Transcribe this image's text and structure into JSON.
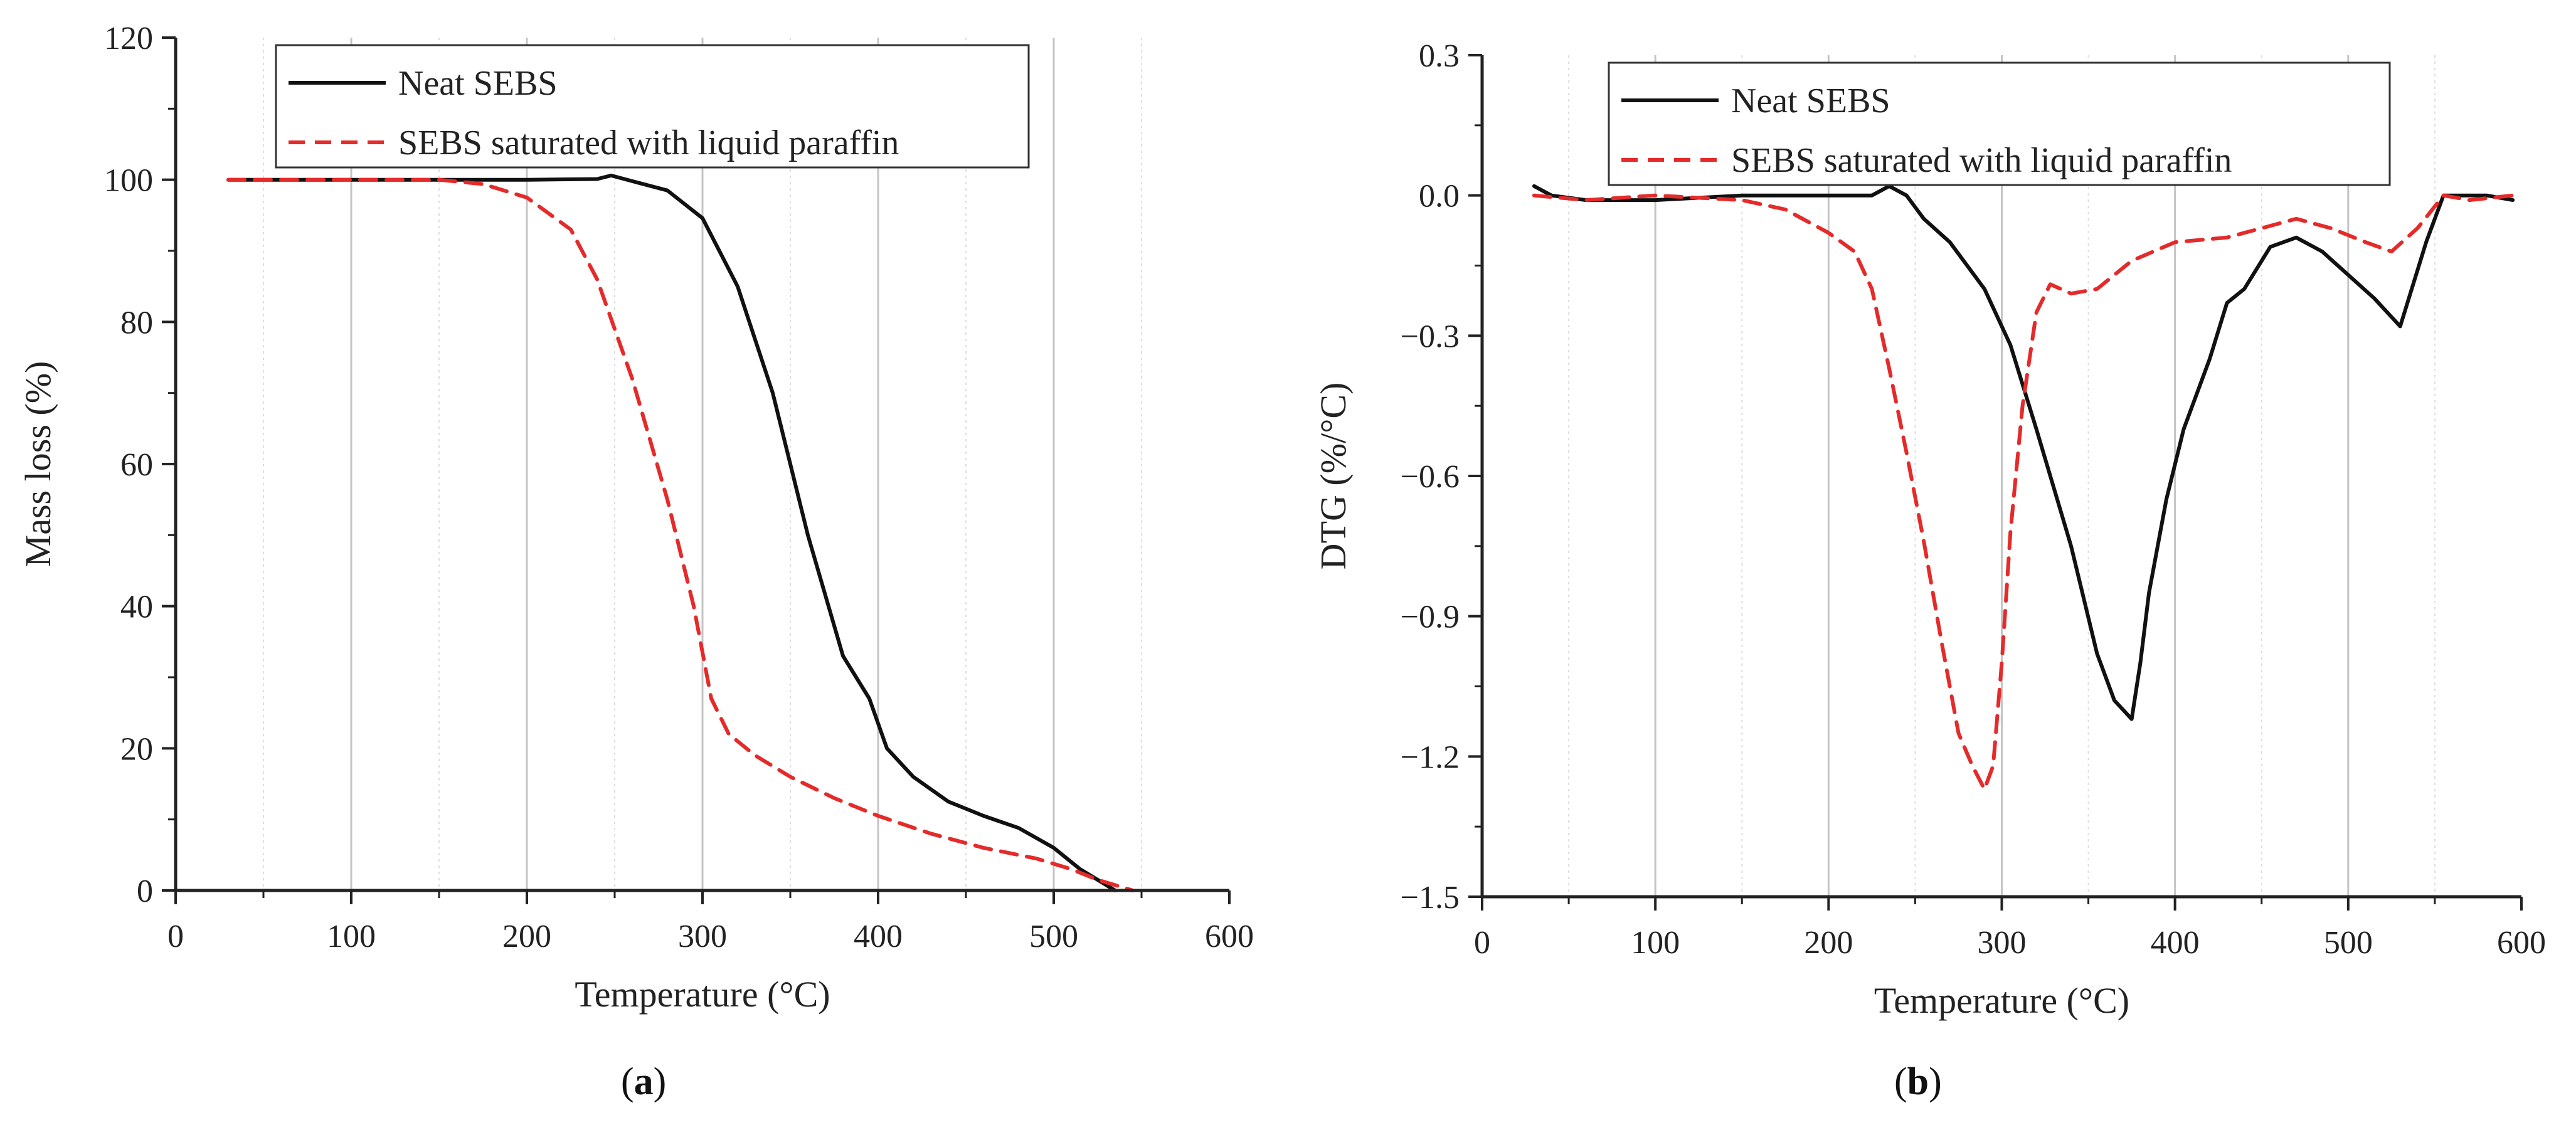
{
  "panels": {
    "a_label_open": "(",
    "a_label_letter": "a",
    "a_label_close": ")",
    "b_label_open": "(",
    "b_label_letter": "b",
    "b_label_close": ")"
  },
  "chart_data": [
    {
      "type": "line",
      "title": "",
      "xlabel": "Temperature (°C)",
      "ylabel": "Mass loss (%)",
      "xlim": [
        0,
        600
      ],
      "ylim": [
        0,
        120
      ],
      "xticks": [
        0,
        100,
        200,
        300,
        400,
        500,
        600
      ],
      "xtick_labels": [
        "0",
        "100",
        "200",
        "300",
        "400",
        "500",
        "600"
      ],
      "yticks": [
        0,
        20,
        40,
        60,
        80,
        100,
        120
      ],
      "ytick_labels": [
        "0",
        "20",
        "40",
        "60",
        "80",
        "100",
        "120"
      ],
      "grid": "vertical",
      "legend": "top-center",
      "series": [
        {
          "name": "Neat SEBS",
          "color": "#111111",
          "dash": "solid",
          "x": [
            30,
            100,
            200,
            240,
            248,
            260,
            280,
            300,
            320,
            340,
            360,
            380,
            395,
            405,
            420,
            440,
            460,
            480,
            500,
            515,
            525,
            535
          ],
          "y": [
            100,
            100,
            100,
            100.1,
            100.6,
            99.8,
            98.5,
            94.6,
            85,
            70,
            50,
            33,
            27,
            20,
            16,
            12.5,
            10.5,
            8.8,
            6,
            3,
            1.5,
            0
          ]
        },
        {
          "name": "SEBS saturated with liquid paraffin",
          "color": "#e52a2a",
          "dash": "dashed",
          "x": [
            30,
            100,
            150,
            175,
            200,
            225,
            240,
            260,
            280,
            295,
            305,
            315,
            330,
            350,
            375,
            400,
            430,
            460,
            490,
            510,
            525,
            545
          ],
          "y": [
            100,
            100,
            100,
            99.4,
            97.5,
            93,
            86,
            72,
            55,
            40,
            27,
            22,
            19,
            16,
            13,
            10.5,
            8,
            6,
            4.5,
            3,
            1.5,
            0
          ]
        }
      ]
    },
    {
      "type": "line",
      "title": "",
      "xlabel": "Temperature (°C)",
      "ylabel": "DTG (%/°C)",
      "xlim": [
        0,
        600
      ],
      "ylim": [
        -1.5,
        0.3
      ],
      "xticks": [
        0,
        100,
        200,
        300,
        400,
        500,
        600
      ],
      "xtick_labels": [
        "0",
        "100",
        "200",
        "300",
        "400",
        "500",
        "600"
      ],
      "yticks": [
        -1.5,
        -1.2,
        -0.9,
        -0.6,
        -0.3,
        0.0,
        0.3
      ],
      "ytick_labels": [
        "−1.5",
        "−1.2",
        "−0.9",
        "−0.6",
        "−0.3",
        "0.0",
        "0.3"
      ],
      "grid": "vertical",
      "legend": "top-right",
      "series": [
        {
          "name": "Neat SEBS",
          "color": "#111111",
          "dash": "solid",
          "x": [
            30,
            40,
            60,
            100,
            150,
            200,
            225,
            235,
            245,
            255,
            270,
            290,
            305,
            320,
            340,
            355,
            365,
            375,
            380,
            385,
            395,
            405,
            420,
            430,
            440,
            455,
            470,
            485,
            500,
            515,
            530,
            545,
            555,
            565,
            580,
            595
          ],
          "y": [
            0.02,
            0.0,
            -0.01,
            -0.01,
            0.0,
            0.0,
            0.0,
            0.02,
            0.0,
            -0.05,
            -0.1,
            -0.2,
            -0.32,
            -0.5,
            -0.75,
            -0.98,
            -1.08,
            -1.12,
            -1.0,
            -0.85,
            -0.65,
            -0.5,
            -0.35,
            -0.23,
            -0.2,
            -0.11,
            -0.09,
            -0.12,
            -0.17,
            -0.22,
            -0.28,
            -0.1,
            0.0,
            0.0,
            0.0,
            -0.01
          ]
        },
        {
          "name": "SEBS saturated with liquid paraffin",
          "color": "#e52a2a",
          "dash": "dashed",
          "x": [
            30,
            60,
            100,
            150,
            175,
            200,
            215,
            225,
            235,
            245,
            255,
            265,
            275,
            283,
            290,
            295,
            300,
            305,
            312,
            320,
            328,
            340,
            355,
            375,
            400,
            430,
            450,
            470,
            490,
            510,
            525,
            540,
            555,
            570,
            595
          ],
          "y": [
            0.0,
            -0.01,
            0.0,
            -0.01,
            -0.03,
            -0.08,
            -0.12,
            -0.2,
            -0.37,
            -0.55,
            -0.74,
            -0.95,
            -1.15,
            -1.22,
            -1.27,
            -1.22,
            -1.0,
            -0.72,
            -0.45,
            -0.25,
            -0.19,
            -0.21,
            -0.2,
            -0.14,
            -0.1,
            -0.09,
            -0.07,
            -0.05,
            -0.07,
            -0.1,
            -0.12,
            -0.07,
            0.0,
            -0.01,
            0.0
          ]
        }
      ]
    }
  ]
}
